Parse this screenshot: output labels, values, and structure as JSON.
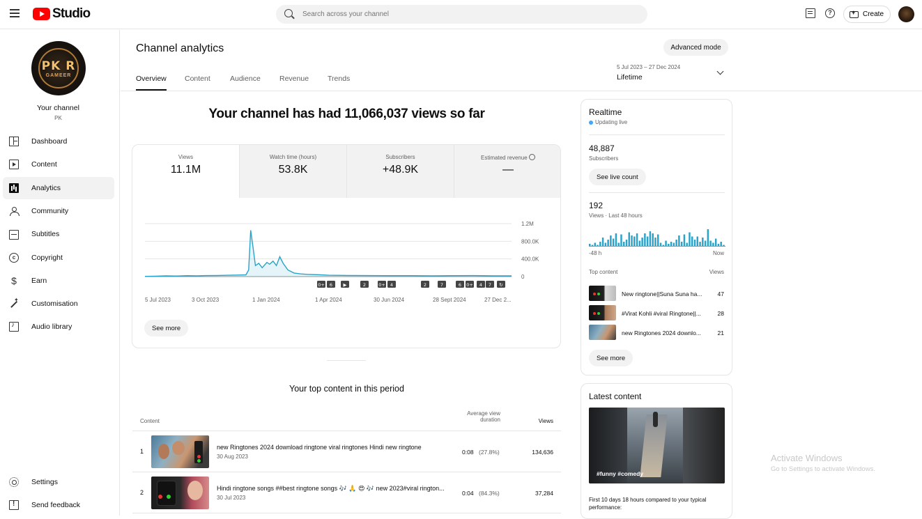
{
  "header": {
    "logo_text": "Studio",
    "search_placeholder": "Search across your channel",
    "create_label": "Create",
    "help_glyph": "?"
  },
  "sidebar": {
    "channel_name": "Your channel",
    "channel_handle": "PK",
    "avatar_text": "PK R",
    "avatar_subtext": "GAMEER",
    "items": [
      {
        "label": "Dashboard",
        "icon": "dashboard-icon"
      },
      {
        "label": "Content",
        "icon": "content-icon"
      },
      {
        "label": "Analytics",
        "icon": "analytics-icon",
        "active": true
      },
      {
        "label": "Community",
        "icon": "community-icon"
      },
      {
        "label": "Subtitles",
        "icon": "subtitles-icon"
      },
      {
        "label": "Copyright",
        "icon": "copyright-icon"
      },
      {
        "label": "Earn",
        "icon": "earn-icon"
      },
      {
        "label": "Customisation",
        "icon": "customisation-icon"
      },
      {
        "label": "Audio library",
        "icon": "audio-library-icon"
      }
    ],
    "bottom_items": [
      {
        "label": "Settings",
        "icon": "settings-icon"
      },
      {
        "label": "Send feedback",
        "icon": "feedback-icon"
      }
    ],
    "copyright_glyph": "c",
    "earn_glyph": "$"
  },
  "main": {
    "title": "Channel analytics",
    "advanced_mode_label": "Advanced mode",
    "tabs": [
      "Overview",
      "Content",
      "Audience",
      "Revenue",
      "Trends"
    ],
    "date_range": "5 Jul 2023 – 27 Dec 2024",
    "date_label": "Lifetime",
    "headline": "Your channel has had 11,066,037 views so far",
    "metrics": [
      {
        "label": "Views",
        "value": "11.1M"
      },
      {
        "label": "Watch time (hours)",
        "value": "53.8K"
      },
      {
        "label": "Subscribers",
        "value": "+48.9K"
      },
      {
        "label": "Estimated revenue",
        "value": "—"
      }
    ],
    "see_more_label": "See more",
    "top_content": {
      "title": "Your top content in this period",
      "col_content": "Content",
      "col_avg_line1": "Average view",
      "col_avg_line2": "duration",
      "col_views": "Views",
      "rows": [
        {
          "rank": "1",
          "title": "new Ringtones 2024 download ringtone viral ringtones Hindi new ringtone",
          "date": "30 Aug 2023",
          "duration": "0:08",
          "pct": "(27.8%)",
          "views": "134,636"
        },
        {
          "rank": "2",
          "title": "Hindi ringtone songs ##best ringtone songs 🎶 🙏 😍 🎶 new 2023#viral rington...",
          "date": "30 Jul 2023",
          "duration": "0:04",
          "pct": "(84.3%)",
          "views": "37,284"
        }
      ]
    }
  },
  "chart_data": {
    "type": "line",
    "series": [
      {
        "name": "Views",
        "color": "#29a3c9"
      }
    ],
    "x_tick_labels": [
      "5 Jul 2023",
      "3 Oct 2023",
      "1 Jan 2024",
      "1 Apr 2024",
      "30 Jun 2024",
      "28 Sept 2024",
      "27 Dec 2..."
    ],
    "y_tick_labels": [
      "1.2M",
      "800.0K",
      "400.0K",
      "0"
    ],
    "ylim": [
      0,
      1200000
    ],
    "x": [
      "2023-07-05",
      "2023-07-20",
      "2023-08-05",
      "2023-08-20",
      "2023-09-05",
      "2023-09-20",
      "2023-10-03",
      "2023-10-20",
      "2023-11-05",
      "2023-11-20",
      "2023-12-01",
      "2023-12-05",
      "2023-12-08",
      "2023-12-12",
      "2023-12-15",
      "2023-12-20",
      "2023-12-25",
      "2024-01-01",
      "2024-01-05",
      "2024-01-10",
      "2024-01-15",
      "2024-01-20",
      "2024-01-25",
      "2024-02-01",
      "2024-02-10",
      "2024-02-20",
      "2024-03-01",
      "2024-03-20",
      "2024-04-01",
      "2024-05-01",
      "2024-06-01",
      "2024-06-30",
      "2024-08-01",
      "2024-09-01",
      "2024-09-28",
      "2024-11-01",
      "2024-12-01",
      "2024-12-27"
    ],
    "values": [
      5000,
      8000,
      15000,
      12000,
      20000,
      18000,
      22000,
      25000,
      30000,
      35000,
      40000,
      150000,
      1050000,
      600000,
      250000,
      300000,
      200000,
      320000,
      280000,
      350000,
      250000,
      450000,
      300000,
      150000,
      80000,
      60000,
      50000,
      40000,
      30000,
      25000,
      22000,
      20000,
      20000,
      18000,
      20000,
      22000,
      18000,
      15000
    ],
    "markers": [
      "0+",
      "6",
      "▶",
      "2",
      "0+",
      "4",
      "2",
      "7",
      "6",
      "0+",
      "4",
      "7",
      "↻"
    ]
  },
  "right": {
    "realtime": {
      "title": "Realtime",
      "updating": "Updating live",
      "subscribers": "48,887",
      "subscribers_label": "Subscribers",
      "see_live_label": "See live count",
      "views": "192",
      "views_label": "Views · Last 48 hours",
      "bars_left": "-48 h",
      "bars_right": "Now",
      "bar_values": [
        2,
        1,
        3,
        1,
        4,
        8,
        3,
        6,
        10,
        7,
        12,
        3,
        11,
        4,
        6,
        13,
        10,
        9,
        12,
        5,
        8,
        12,
        9,
        14,
        12,
        8,
        11,
        3,
        1,
        5,
        2,
        4,
        3,
        6,
        10,
        4,
        11,
        3,
        13,
        9,
        6,
        9,
        4,
        8,
        5,
        16,
        5,
        3,
        7,
        2,
        4,
        1
      ],
      "top_content_label": "Top content",
      "views_col_label": "Views",
      "top_rows": [
        {
          "title": "New ringtone||Suna Suna ha...",
          "views": "47"
        },
        {
          "title": "#Virat Kohli #viral Ringtone||...",
          "views": "28"
        },
        {
          "title": "new Ringtones 2024 downlo...",
          "views": "21"
        }
      ],
      "see_more_label": "See more"
    },
    "latest": {
      "title": "Latest content",
      "thumb_caption": "#funny #comedy",
      "note": "First 10 days 18 hours compared to your typical performance:"
    }
  },
  "watermark": {
    "line1": "Activate Windows",
    "line2": "Go to Settings to activate Windows."
  }
}
